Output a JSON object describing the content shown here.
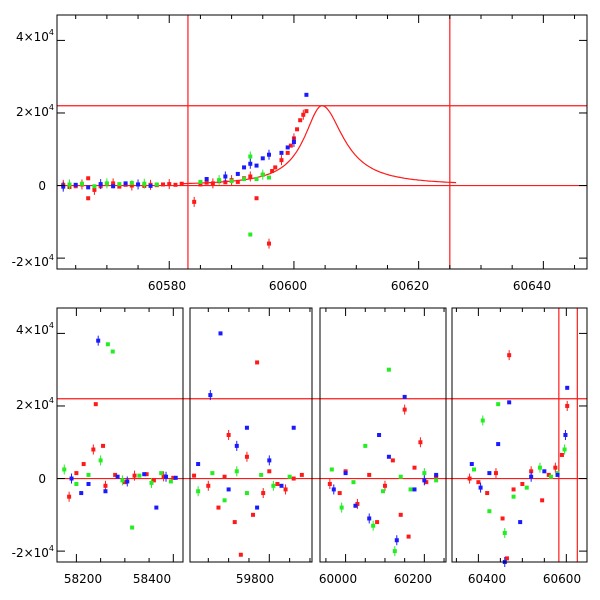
{
  "figure": {
    "background": "#ffffff",
    "colors": {
      "red": "#ff1a1a",
      "green": "#22ee22",
      "blue": "#1a1aff",
      "axis": "#000000"
    }
  },
  "chart_data": [
    {
      "type": "scatter",
      "title": "",
      "xlabel": "",
      "ylabel": "",
      "xlim": [
        60562,
        60647
      ],
      "ylim": [
        -23000,
        47000
      ],
      "x_ticks": [
        60580,
        60600,
        60620,
        60640
      ],
      "x_tick_labels": [
        "60580",
        "60600",
        "60620",
        "60640"
      ],
      "y_ticks": [
        -20000,
        0,
        20000,
        40000
      ],
      "y_tick_labels": [
        {
          "mantissa": "-2×10",
          "exp": "4"
        },
        {
          "mantissa": "0",
          "exp": ""
        },
        {
          "mantissa": "2×10",
          "exp": "4"
        },
        {
          "mantissa": "4×10",
          "exp": "4"
        }
      ],
      "reference_lines": {
        "vertical": [
          60583,
          60625
        ],
        "horizontal": [
          0,
          22000
        ]
      },
      "model_curve": {
        "baseline": 0,
        "peak_x": 60604.5,
        "peak_y": 22000,
        "rise_width": 3.5,
        "fall_width": 4.2
      },
      "series": [
        {
          "color": "red",
          "points": [
            [
              60563,
              200
            ],
            [
              60564,
              -400
            ],
            [
              60565,
              -200
            ],
            [
              60566,
              300
            ],
            [
              60567,
              2000
            ],
            [
              60567,
              -3500
            ],
            [
              60568,
              -1200
            ],
            [
              60569,
              -200
            ],
            [
              60570,
              400
            ],
            [
              60571,
              600
            ],
            [
              60572,
              -300
            ],
            [
              60573,
              200
            ],
            [
              60574,
              0
            ],
            [
              60575,
              300
            ],
            [
              60576,
              -100
            ],
            [
              60577,
              200
            ],
            [
              60578,
              100
            ],
            [
              60579,
              300
            ],
            [
              60580,
              400
            ],
            [
              60581,
              200
            ],
            [
              60582,
              500
            ],
            [
              60584,
              -4500
            ],
            [
              60585,
              300
            ],
            [
              60586,
              800
            ],
            [
              60587,
              600
            ],
            [
              60588,
              1200
            ],
            [
              60589,
              900
            ],
            [
              60590,
              1500
            ],
            [
              60591,
              1000
            ],
            [
              60592,
              2000
            ],
            [
              60593,
              2500
            ],
            [
              60594,
              -3500
            ],
            [
              60595,
              3000
            ],
            [
              60596,
              -16000
            ],
            [
              60596.5,
              4000
            ],
            [
              60597,
              5000
            ],
            [
              60598,
              7000
            ],
            [
              60599,
              9000
            ],
            [
              60599.5,
              11000
            ],
            [
              60600,
              13000
            ],
            [
              60600.5,
              15500
            ],
            [
              60601,
              18000
            ],
            [
              60601.5,
              19500
            ],
            [
              60602,
              20500
            ]
          ]
        },
        {
          "color": "green",
          "points": [
            [
              60564,
              300
            ],
            [
              60566,
              500
            ],
            [
              60568,
              -200
            ],
            [
              60570,
              600
            ],
            [
              60572,
              400
            ],
            [
              60574,
              700
            ],
            [
              60576,
              500
            ],
            [
              60578,
              300
            ],
            [
              60585,
              1000
            ],
            [
              60588,
              1500
            ],
            [
              60590,
              1200
            ],
            [
              60592,
              1800
            ],
            [
              60593,
              8000
            ],
            [
              60593,
              -13500
            ],
            [
              60594,
              1800
            ],
            [
              60595,
              3000
            ],
            [
              60596,
              2200
            ]
          ]
        },
        {
          "color": "blue",
          "points": [
            [
              60563,
              -300
            ],
            [
              60565,
              200
            ],
            [
              60567,
              -500
            ],
            [
              60569,
              400
            ],
            [
              60571,
              -200
            ],
            [
              60573,
              600
            ],
            [
              60575,
              300
            ],
            [
              60577,
              -100
            ],
            [
              60586,
              1800
            ],
            [
              60589,
              2500
            ],
            [
              60591,
              3200
            ],
            [
              60592,
              5000
            ],
            [
              60593,
              6000
            ],
            [
              60594,
              5500
            ],
            [
              60595,
              7500
            ],
            [
              60596,
              8500
            ],
            [
              60598,
              9000
            ],
            [
              60599,
              10500
            ],
            [
              60600,
              12000
            ],
            [
              60602,
              25000
            ]
          ]
        }
      ]
    },
    {
      "type": "scatter",
      "title": "",
      "xlabel": "",
      "ylabel": "",
      "broken_x_axis": true,
      "ylim": [
        -23000,
        47000
      ],
      "y_ticks": [
        -20000,
        0,
        20000,
        40000
      ],
      "y_tick_labels": [
        {
          "mantissa": "-2×10",
          "exp": "4"
        },
        {
          "mantissa": "0",
          "exp": ""
        },
        {
          "mantissa": "2×10",
          "exp": "4"
        },
        {
          "mantissa": "4×10",
          "exp": "4"
        }
      ],
      "reference_lines": {
        "vertical": [
          60583,
          60625
        ],
        "horizontal": [
          0,
          22000
        ]
      },
      "segments": [
        {
          "xlim": [
            58160,
            58420
          ],
          "x_ticks": [
            58200,
            58400
          ],
          "x_tick_labels": [
            "58200",
            "58400"
          ]
        },
        {
          "xlim": [
            59605,
            59905
          ],
          "x_ticks": [
            59800
          ],
          "x_tick_labels": [
            "59800"
          ]
        },
        {
          "xlim": [
            59935,
            60255
          ],
          "x_ticks": [
            60000,
            60200
          ],
          "x_tick_labels": [
            "60000",
            "60200"
          ]
        },
        {
          "xlim": [
            60340,
            60647
          ],
          "x_ticks": [
            60400,
            60600
          ],
          "x_tick_labels": [
            "60400",
            "60600"
          ]
        }
      ],
      "series": [
        {
          "color": "red",
          "points": [
            [
              58185,
              -5000
            ],
            [
              58200,
              1500
            ],
            [
              58215,
              4000
            ],
            [
              58235,
              8000
            ],
            [
              58240,
              20500
            ],
            [
              58255,
              9000
            ],
            [
              58260,
              -2000
            ],
            [
              58280,
              1000
            ],
            [
              58300,
              -1000
            ],
            [
              58320,
              800
            ],
            [
              58345,
              1200
            ],
            [
              58360,
              -500
            ],
            [
              58380,
              600
            ],
            [
              58400,
              200
            ],
            [
              59615,
              800
            ],
            [
              59650,
              -2000
            ],
            [
              59675,
              -8000
            ],
            [
              59690,
              500
            ],
            [
              59700,
              12000
            ],
            [
              59715,
              -12000
            ],
            [
              59730,
              -21000
            ],
            [
              59745,
              6000
            ],
            [
              59760,
              -10000
            ],
            [
              59770,
              32000
            ],
            [
              59785,
              -4000
            ],
            [
              59800,
              2000
            ],
            [
              59820,
              -1500
            ],
            [
              59840,
              -3000
            ],
            [
              59860,
              0
            ],
            [
              59880,
              1000
            ],
            [
              59960,
              -1500
            ],
            [
              59985,
              -4000
            ],
            [
              60000,
              2000
            ],
            [
              60030,
              -7000
            ],
            [
              60060,
              1000
            ],
            [
              60080,
              -12000
            ],
            [
              60100,
              -2000
            ],
            [
              60120,
              5000
            ],
            [
              60140,
              -10000
            ],
            [
              60150,
              19000
            ],
            [
              60160,
              -16000
            ],
            [
              60175,
              3000
            ],
            [
              60190,
              10000
            ],
            [
              60205,
              -1000
            ],
            [
              60230,
              500
            ],
            [
              60380,
              0
            ],
            [
              60400,
              -1000
            ],
            [
              60420,
              -4000
            ],
            [
              60440,
              1500
            ],
            [
              60455,
              -11000
            ],
            [
              60465,
              -22000
            ],
            [
              60470,
              34000
            ],
            [
              60480,
              -3000
            ],
            [
              60500,
              -1500
            ],
            [
              60520,
              2000
            ],
            [
              60545,
              -6000
            ],
            [
              60560,
              1000
            ],
            [
              60575,
              3000
            ],
            [
              60590,
              6500
            ],
            [
              60598,
              12000
            ],
            [
              60602,
              20000
            ]
          ]
        },
        {
          "color": "green",
          "points": [
            [
              58175,
              2500
            ],
            [
              58200,
              -1500
            ],
            [
              58225,
              1000
            ],
            [
              58250,
              5000
            ],
            [
              58265,
              37000
            ],
            [
              58275,
              35000
            ],
            [
              58295,
              -500
            ],
            [
              58315,
              -13500
            ],
            [
              58330,
              800
            ],
            [
              58355,
              -1200
            ],
            [
              58375,
              1500
            ],
            [
              58395,
              -800
            ],
            [
              59625,
              -3500
            ],
            [
              59660,
              1500
            ],
            [
              59690,
              -6000
            ],
            [
              59720,
              2000
            ],
            [
              59745,
              -4000
            ],
            [
              59780,
              1000
            ],
            [
              59810,
              -2000
            ],
            [
              59850,
              500
            ],
            [
              59965,
              2500
            ],
            [
              59990,
              -8000
            ],
            [
              60020,
              -1000
            ],
            [
              60050,
              9000
            ],
            [
              60070,
              -13000
            ],
            [
              60095,
              -3500
            ],
            [
              60110,
              30000
            ],
            [
              60125,
              -20000
            ],
            [
              60140,
              500
            ],
            [
              60165,
              -3000
            ],
            [
              60200,
              1500
            ],
            [
              60230,
              -500
            ],
            [
              60390,
              2500
            ],
            [
              60410,
              16000
            ],
            [
              60425,
              -9000
            ],
            [
              60445,
              20500
            ],
            [
              60460,
              -15000
            ],
            [
              60480,
              -5000
            ],
            [
              60510,
              -2500
            ],
            [
              60540,
              3000
            ],
            [
              60565,
              500
            ],
            [
              60580,
              1500
            ],
            [
              60596,
              8000
            ]
          ]
        },
        {
          "color": "blue",
          "points": [
            [
              58190,
              0
            ],
            [
              58210,
              -4000
            ],
            [
              58225,
              -1500
            ],
            [
              58245,
              38000
            ],
            [
              58260,
              -3500
            ],
            [
              58285,
              500
            ],
            [
              58305,
              -800
            ],
            [
              58340,
              1200
            ],
            [
              58365,
              -8000
            ],
            [
              58385,
              500
            ],
            [
              58405,
              200
            ],
            [
              59625,
              4000
            ],
            [
              59655,
              23000
            ],
            [
              59680,
              40000
            ],
            [
              59700,
              -3000
            ],
            [
              59720,
              9000
            ],
            [
              59745,
              14000
            ],
            [
              59770,
              -8000
            ],
            [
              59800,
              5000
            ],
            [
              59830,
              -2000
            ],
            [
              59860,
              14000
            ],
            [
              59970,
              -3000
            ],
            [
              60000,
              1500
            ],
            [
              60025,
              -7500
            ],
            [
              60060,
              -11000
            ],
            [
              60085,
              12000
            ],
            [
              60110,
              6000
            ],
            [
              60130,
              -17000
            ],
            [
              60150,
              22500
            ],
            [
              60175,
              -3000
            ],
            [
              60200,
              -500
            ],
            [
              60230,
              1000
            ],
            [
              60385,
              4000
            ],
            [
              60405,
              -2500
            ],
            [
              60425,
              1500
            ],
            [
              60445,
              9500
            ],
            [
              60460,
              -23000
            ],
            [
              60470,
              21000
            ],
            [
              60495,
              -12000
            ],
            [
              60520,
              500
            ],
            [
              60550,
              2000
            ],
            [
              60580,
              1000
            ],
            [
              60598,
              12000
            ],
            [
              60602,
              25000
            ]
          ]
        }
      ]
    }
  ]
}
